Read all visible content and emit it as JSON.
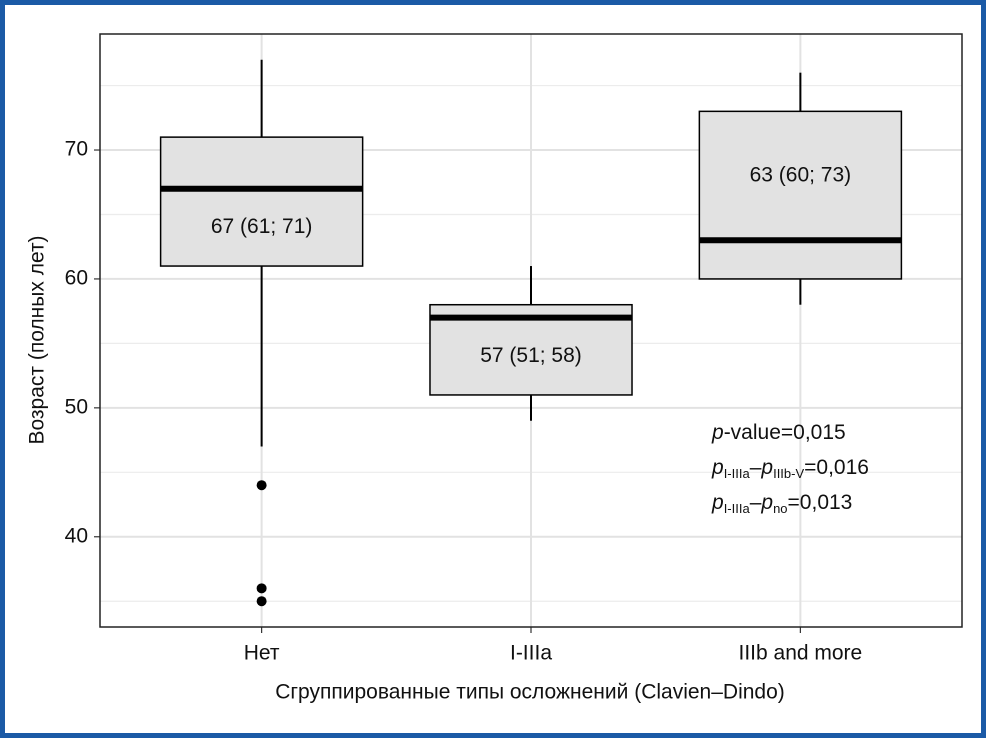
{
  "chart_data": {
    "type": "boxplot",
    "x_label": "Сгруппированные типы осложнений (Clavien–Dindo)",
    "y_label": "Возраст (полных лет)",
    "categories": [
      "Нет",
      "I-IIIa",
      "IIIb and more"
    ],
    "boxes": [
      {
        "whisker_low": 47,
        "q1": 61,
        "median": 67,
        "q3": 71,
        "whisker_high": 77,
        "outliers": [
          44,
          36,
          35
        ]
      },
      {
        "whisker_low": 49,
        "q1": 51,
        "median": 57,
        "q3": 58,
        "whisker_high": 61,
        "outliers": []
      },
      {
        "whisker_low": 58,
        "q1": 60,
        "median": 63,
        "q3": 73,
        "whisker_high": 76,
        "outliers": []
      }
    ],
    "value_labels": [
      "67 (61; 71)",
      "57 (51; 58)",
      "63 (60; 73)"
    ],
    "color": "#e2e2e2",
    "ylim": [
      33,
      79
    ],
    "yticks": [
      40,
      50,
      60,
      70
    ],
    "minor_gridlines": [
      35,
      45,
      55,
      65,
      75
    ],
    "grid": true,
    "annotations": [
      [
        {
          "text": "p",
          "italic": true
        },
        {
          "text": "-value=0,015"
        }
      ],
      [
        {
          "text": "p",
          "italic": true
        },
        {
          "text": "I-IIIa",
          "sub": true
        },
        {
          "text": "–"
        },
        {
          "text": "p",
          "italic": true
        },
        {
          "text": "IIIb-V",
          "sub": true
        },
        {
          "text": "=0,016"
        }
      ],
      [
        {
          "text": "p",
          "italic": true
        },
        {
          "text": "I-IIIa",
          "sub": true
        },
        {
          "text": "–"
        },
        {
          "text": "p",
          "italic": true
        },
        {
          "text": "no",
          "sub": true
        },
        {
          "text": "=0,013"
        }
      ]
    ]
  }
}
